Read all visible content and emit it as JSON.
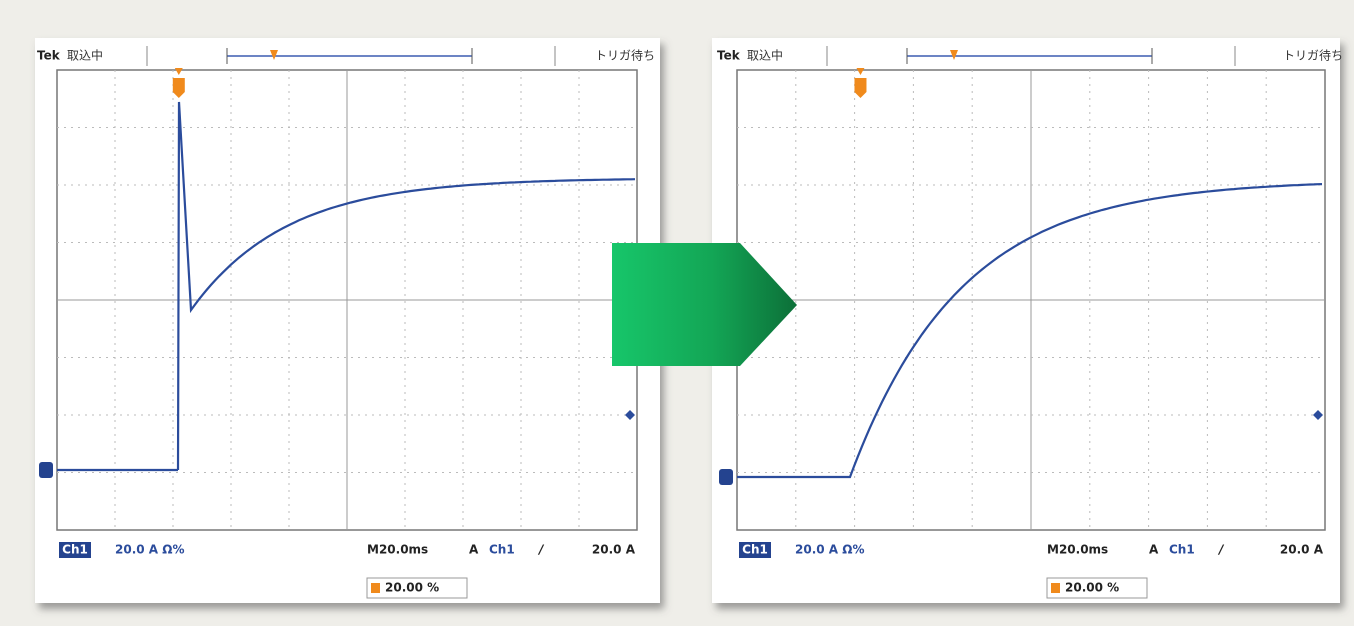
{
  "scopes": [
    {
      "header": {
        "brand": "Tek",
        "status": "取込中",
        "trigger_status": "トリガ待ち"
      },
      "footer": {
        "channel": "Ch1",
        "scale": "20.0 A Ω%",
        "timebase": "M20.0ms",
        "trigger_mode": "A",
        "trigger_source": "Ch1",
        "trigger_slope": "/",
        "trigger_level": "20.0 A",
        "position": "20.00 %"
      }
    },
    {
      "header": {
        "brand": "Tek",
        "status": "取込中",
        "trigger_status": "トリガ待ち"
      },
      "footer": {
        "channel": "Ch1",
        "scale": "20.0 A Ω%",
        "timebase": "M20.0ms",
        "trigger_mode": "A",
        "trigger_source": "Ch1",
        "trigger_slope": "/",
        "trigger_level": "20.0 A",
        "position": "20.00 %"
      }
    }
  ]
}
